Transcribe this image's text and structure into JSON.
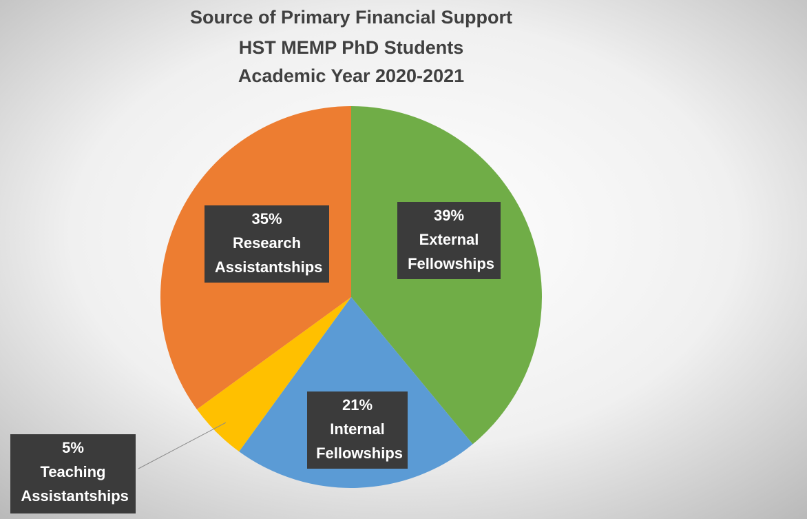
{
  "chart_data": {
    "type": "pie",
    "title": [
      "Source of Primary Financial Support",
      "HST MEMP PhD Students",
      "Academic Year 2020-2021"
    ],
    "categories": [
      "External Fellowships",
      "Internal Fellowships",
      "Teaching Assistantships",
      "Research Assistantships"
    ],
    "values": [
      39,
      21,
      5,
      35
    ],
    "value_labels": [
      "39%",
      "21%",
      "5%",
      "35%"
    ],
    "colors": [
      "#70ad47",
      "#5b9bd5",
      "#ffc000",
      "#ed7d31"
    ]
  }
}
